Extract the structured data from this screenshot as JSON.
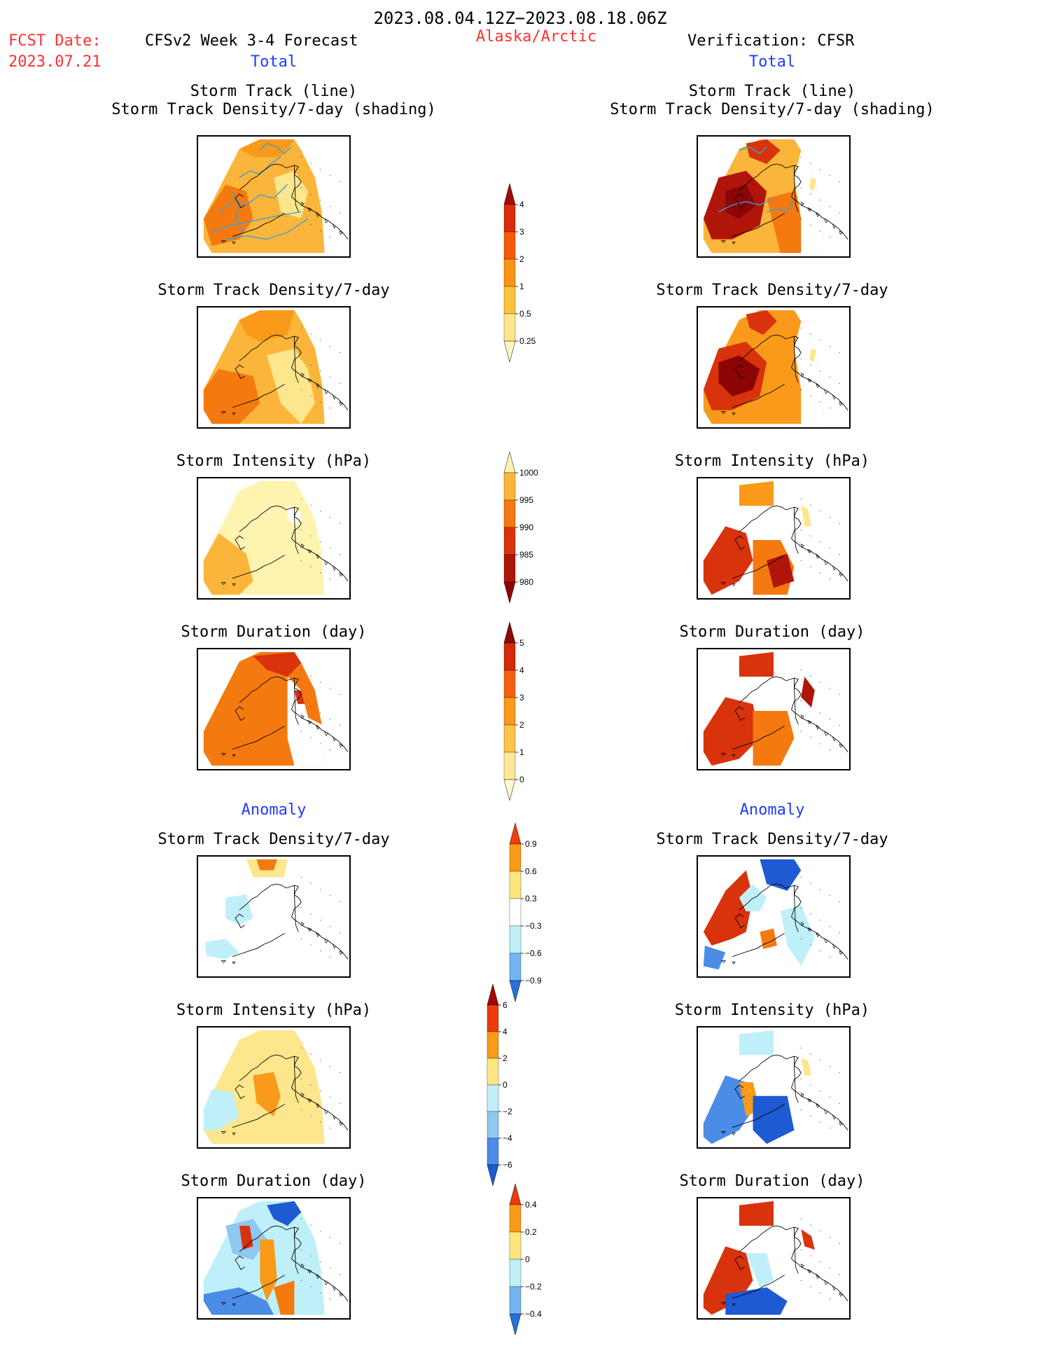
{
  "header": {
    "period": "2023.08.04.12Z−2023.08.18.06Z",
    "fcst_label": "FCST Date:",
    "fcst_date": "2023.07.21",
    "model": "CFSv2 Week 3-4 Forecast",
    "region": "Alaska/Arctic",
    "verification": "Verification: CFSR",
    "left_total": "Total",
    "right_total": "Total",
    "left_anomaly": "Anomaly",
    "right_anomaly": "Anomaly"
  },
  "panel_titles": {
    "track_line": "Storm Track (line)",
    "track_shading": "Storm Track Density/7-day (shading)",
    "density": "Storm Track Density/7-day",
    "intensity": "Storm Intensity (hPa)",
    "duration": "Storm Duration (day)"
  },
  "colorbars": {
    "density_total": {
      "labels": [
        "4",
        "3",
        "2",
        "1",
        "0.5",
        "0.25"
      ],
      "colors": [
        "#a50a0a",
        "#d92b0b",
        "#f55a0a",
        "#fb9414",
        "#fcc23c",
        "#fde68c",
        "#fff7c2"
      ]
    },
    "intensity_total": {
      "labels": [
        "1000",
        "995",
        "990",
        "985",
        "980"
      ],
      "colors": [
        "#fff3b0",
        "#fbb53a",
        "#f47a10",
        "#d8330c",
        "#b0150a",
        "#8c0505"
      ]
    },
    "duration_total": {
      "labels": [
        "5",
        "4",
        "3",
        "2",
        "1",
        "0"
      ],
      "colors": [
        "#8e0606",
        "#d22a0b",
        "#f36010",
        "#f99a1a",
        "#fcc44a",
        "#fde89a",
        "#fffad0"
      ]
    },
    "density_anom": {
      "labels": [
        "0.9",
        "0.6",
        "0.3",
        "−0.3",
        "−0.6",
        "−0.9"
      ],
      "colors": [
        "#f0400a",
        "#fb9a18",
        "#fde680",
        "#ffffff",
        "#bff0fa",
        "#74b4f0",
        "#2870dc"
      ]
    },
    "intensity_anom": {
      "labels": [
        "6",
        "4",
        "2",
        "0",
        "−2",
        "−4",
        "−6"
      ],
      "colors": [
        "#a00808",
        "#ee3a0a",
        "#fb9a18",
        "#fde680",
        "#bff0fa",
        "#8cc8f0",
        "#4a8ce6",
        "#1e5ad2"
      ]
    },
    "duration_anom": {
      "labels": [
        "0.4",
        "0.2",
        "0",
        "−0.2",
        "−0.4"
      ],
      "colors": [
        "#ee3a0a",
        "#fb9a18",
        "#fde680",
        "#bff0fa",
        "#74b4f0",
        "#2870dc"
      ]
    }
  },
  "maps": {
    "fc_track": "map-forecast-track-line",
    "fc_density": "map-forecast-density",
    "fc_intensity": "map-forecast-intensity",
    "fc_duration": "map-forecast-duration",
    "fc_anom_density": "map-forecast-anomaly-density",
    "fc_anom_intensity": "map-forecast-anomaly-intensity",
    "fc_anom_duration": "map-forecast-anomaly-duration",
    "vf_track": "map-verification-track-line",
    "vf_density": "map-verification-density",
    "vf_intensity": "map-verification-intensity",
    "vf_duration": "map-verification-duration",
    "vf_anom_density": "map-verification-anomaly-density",
    "vf_anom_intensity": "map-verification-anomaly-intensity",
    "vf_anom_duration": "map-verification-anomaly-duration"
  }
}
